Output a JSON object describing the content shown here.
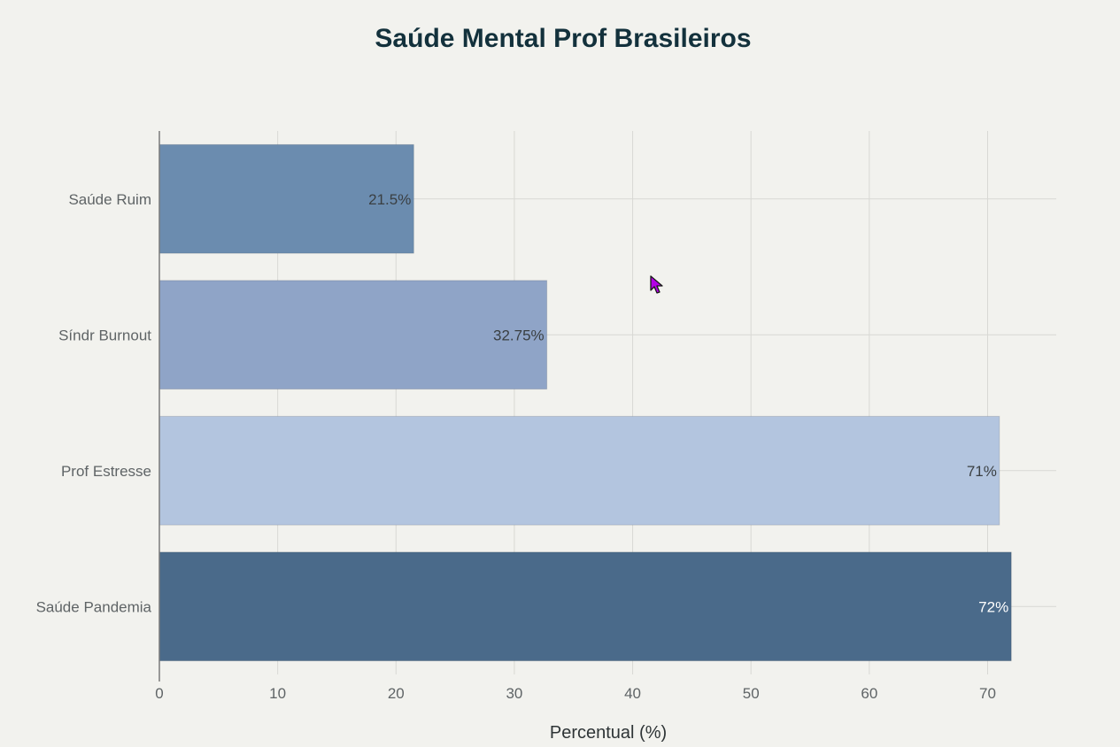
{
  "chart_data": {
    "type": "bar",
    "orientation": "horizontal",
    "title": "Saúde Mental Prof Brasileiros",
    "xlabel": "Percentual (%)",
    "ylabel": "",
    "categories": [
      "Saúde Ruim",
      "Síndr Burnout",
      "Prof Estresse",
      "Saúde Pandemia"
    ],
    "values": [
      21.5,
      32.75,
      71,
      72
    ],
    "data_labels": [
      "21.5%",
      "32.75%",
      "71%",
      "72%"
    ],
    "colors": [
      "#6b8caf",
      "#8fa4c7",
      "#b3c5df",
      "#4a6a8a"
    ],
    "label_colors": [
      "#3a3f42",
      "#3a3f42",
      "#3a3f42",
      "#ffffff"
    ],
    "xlim": [
      0,
      75.8
    ],
    "xticks": [
      0,
      10,
      20,
      30,
      40,
      50,
      60,
      70
    ],
    "grid": true,
    "legend": "none"
  },
  "colors": {
    "background": "#f2f2ee",
    "grid": "#d8d8d4",
    "axis": "#7a7a7a",
    "title": "#13313c"
  },
  "cursor_icon": "mouse-pointer-icon"
}
